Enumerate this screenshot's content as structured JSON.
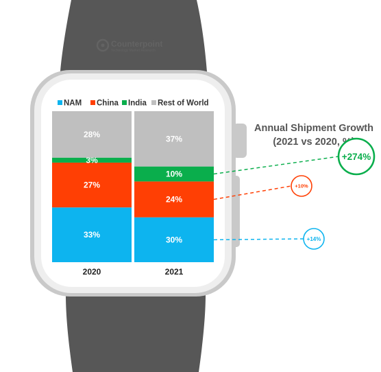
{
  "brand": {
    "name": "Counterpoint",
    "tagline": "Technology Market Research"
  },
  "side_title": {
    "line1": "Annual Shipment Growth",
    "line2": "(2021 vs 2020, %)"
  },
  "colors": {
    "NAM": "#0db4ef",
    "China": "#ff3f04",
    "India": "#0aae4c",
    "Rest of World": "#bfbfbf"
  },
  "chart_data": {
    "type": "bar",
    "stacked": true,
    "normalized_percent": true,
    "categories": [
      "2020",
      "2021"
    ],
    "series": [
      {
        "name": "NAM",
        "values": [
          33,
          30
        ],
        "labels": [
          "33%",
          "30%"
        ]
      },
      {
        "name": "China",
        "values": [
          27,
          24
        ],
        "labels": [
          "27%",
          "24%"
        ]
      },
      {
        "name": "India",
        "values": [
          3,
          10
        ],
        "labels": [
          "3%",
          "10%"
        ]
      },
      {
        "name": "Rest of World",
        "values": [
          28,
          37
        ],
        "labels": [
          "28%",
          "37%"
        ]
      }
    ],
    "legend": [
      "NAM",
      "China",
      "India",
      "Rest of World"
    ],
    "legend_position": "top",
    "growth_callouts": [
      {
        "series": "India",
        "label": "+274%",
        "value": 274
      },
      {
        "series": "China",
        "label": "+10%",
        "value": 10
      },
      {
        "series": "NAM",
        "label": "+14%",
        "value": 14
      }
    ]
  }
}
